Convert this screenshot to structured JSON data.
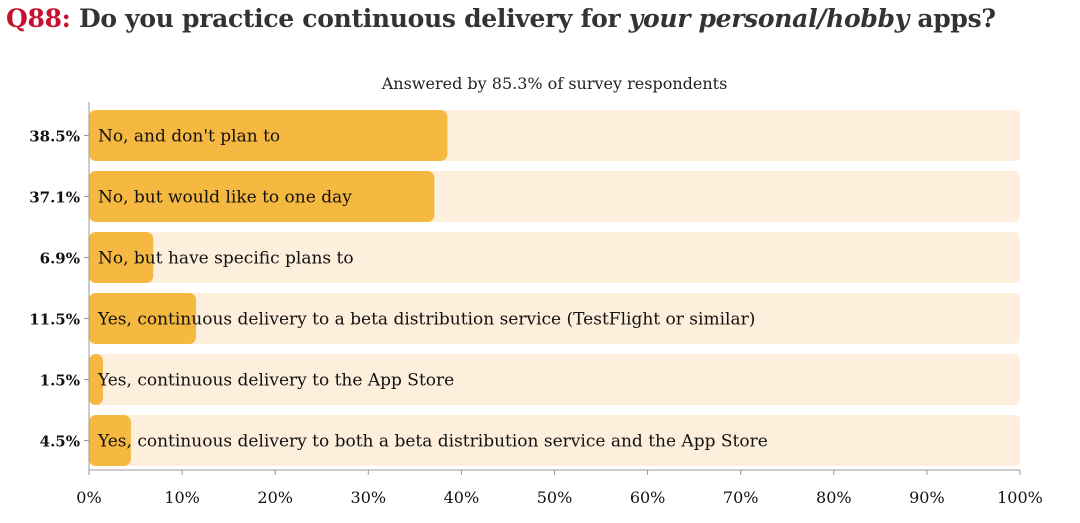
{
  "title": {
    "prefix": "Q88:",
    "text_before": " Do you practice continuous delivery for ",
    "emphasis": "your personal/hobby",
    "text_after": " apps?"
  },
  "colors": {
    "bar": "#f5b942",
    "track": "#fdefdc",
    "accent": "#c8102e"
  },
  "chart_data": {
    "type": "bar",
    "orientation": "horizontal",
    "subtitle": "Answered by 85.3% of survey respondents",
    "categories": [
      "No, and don't plan to",
      "No, but would like to one day",
      "No, but have specific plans to",
      "Yes, continuous delivery to a beta distribution service (TestFlight or similar)",
      "Yes, continuous delivery to the App Store",
      "Yes, continuous delivery to both a beta distribution service and the App Store"
    ],
    "values": [
      38.5,
      37.1,
      6.9,
      11.5,
      1.5,
      4.5
    ],
    "value_labels": [
      "38.5%",
      "37.1%",
      "6.9%",
      "11.5%",
      "1.5%",
      "4.5%"
    ],
    "xlim": [
      0,
      100
    ],
    "xticks": [
      "0%",
      "10%",
      "20%",
      "30%",
      "40%",
      "50%",
      "60%",
      "70%",
      "80%",
      "90%",
      "100%"
    ],
    "grid": false
  }
}
